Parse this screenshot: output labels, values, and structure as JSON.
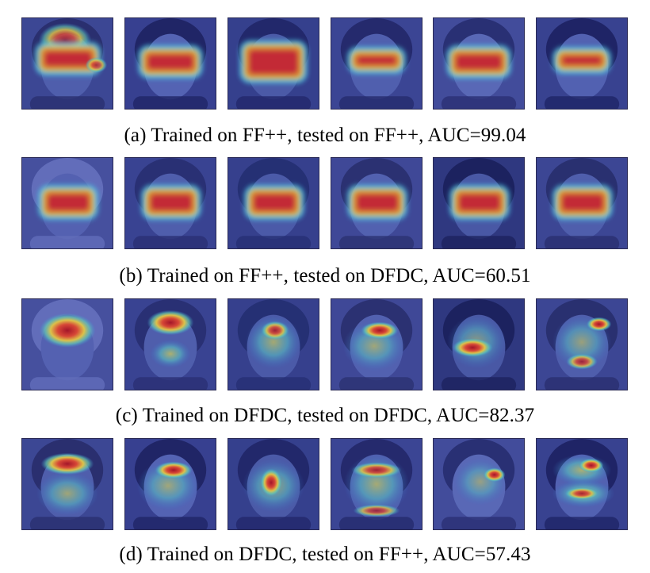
{
  "figure": {
    "rows": [
      {
        "caption": "(a) Trained on FF++, tested on FF++, AUC=99.04",
        "panels": [
          {
            "name": "face-heatmap-a1",
            "bg": "#3f4a94",
            "hair": "#2b2f6a",
            "skin": "#5565b0",
            "heat": "band-wide"
          },
          {
            "name": "face-heatmap-a2",
            "bg": "#3a4390",
            "hair": "#1f2460",
            "skin": "#5a6ab8",
            "heat": "band"
          },
          {
            "name": "face-heatmap-a3",
            "bg": "#37428c",
            "hair": "#222766",
            "skin": "#5060aa",
            "heat": "band-tall"
          },
          {
            "name": "face-heatmap-a4",
            "bg": "#3e4895",
            "hair": "#252a68",
            "skin": "#5666b2",
            "heat": "band-thin"
          },
          {
            "name": "face-heatmap-a5",
            "bg": "#46509c",
            "hair": "#2a3070",
            "skin": "#6070bb",
            "heat": "band"
          },
          {
            "name": "face-heatmap-a6",
            "bg": "#3b4590",
            "hair": "#1e2360",
            "skin": "#5868b5",
            "heat": "band-thin"
          }
        ]
      },
      {
        "caption": "(b) Trained on FF++, tested on DFDC, AUC=60.51",
        "panels": [
          {
            "name": "face-heatmap-b1",
            "bg": "#4a55a0",
            "hair": "#6a76c0",
            "skin": "#5a68b5",
            "heat": "rect"
          },
          {
            "name": "face-heatmap-b2",
            "bg": "#3c4692",
            "hair": "#2a3070",
            "skin": "#5565b0",
            "heat": "rect"
          },
          {
            "name": "face-heatmap-b3",
            "bg": "#38428c",
            "hair": "#253070",
            "skin": "#5060ab",
            "heat": "rect"
          },
          {
            "name": "face-heatmap-b4",
            "bg": "#424c98",
            "hair": "#2c326e",
            "skin": "#5868b4",
            "heat": "rect"
          },
          {
            "name": "face-heatmap-b5",
            "bg": "#30397e",
            "hair": "#1b2058",
            "skin": "#4e5ea8",
            "heat": "rect"
          },
          {
            "name": "face-heatmap-b6",
            "bg": "#3f4994",
            "hair": "#2a306c",
            "skin": "#5565b0",
            "heat": "rect"
          }
        ]
      },
      {
        "caption": "(c) Trained on DFDC, tested on DFDC, AUC=82.37",
        "panels": [
          {
            "name": "face-heatmap-c1",
            "bg": "#4a55a0",
            "hair": "#6a76c0",
            "skin": "#5a68b5",
            "heat": "forehead"
          },
          {
            "name": "face-heatmap-c2",
            "bg": "#3c4692",
            "hair": "#2a3070",
            "skin": "#5565b0",
            "heat": "two-spots"
          },
          {
            "name": "face-heatmap-c3",
            "bg": "#38428c",
            "hair": "#253070",
            "skin": "#5060ab",
            "heat": "diagonal"
          },
          {
            "name": "face-heatmap-c4",
            "bg": "#424c98",
            "hair": "#2c326e",
            "skin": "#5868b4",
            "heat": "eyes"
          },
          {
            "name": "face-heatmap-c5",
            "bg": "#30397e",
            "hair": "#1b2058",
            "skin": "#4e5ea8",
            "heat": "mouth"
          },
          {
            "name": "face-heatmap-c6",
            "bg": "#3f4994",
            "hair": "#2a306c",
            "skin": "#5565b0",
            "heat": "eyes-mouth"
          }
        ]
      },
      {
        "caption": "(d) Trained on DFDC, tested on FF++, AUC=57.43",
        "panels": [
          {
            "name": "face-heatmap-d1",
            "bg": "#3f4a94",
            "hair": "#2b2f6a",
            "skin": "#5565b0",
            "heat": "forehead-thin"
          },
          {
            "name": "face-heatmap-d2",
            "bg": "#3a4390",
            "hair": "#1f2460",
            "skin": "#5a6ab8",
            "heat": "eyes"
          },
          {
            "name": "face-heatmap-d3",
            "bg": "#37428c",
            "hair": "#222766",
            "skin": "#5060aa",
            "heat": "nose"
          },
          {
            "name": "face-heatmap-d4",
            "bg": "#3e4895",
            "hair": "#252a68",
            "skin": "#5666b2",
            "heat": "frame"
          },
          {
            "name": "face-heatmap-d5",
            "bg": "#46509c",
            "hair": "#2a3070",
            "skin": "#6070bb",
            "heat": "eye-right"
          },
          {
            "name": "face-heatmap-d6",
            "bg": "#3b4590",
            "hair": "#1e2360",
            "skin": "#5868b5",
            "heat": "stacked"
          }
        ]
      }
    ]
  }
}
